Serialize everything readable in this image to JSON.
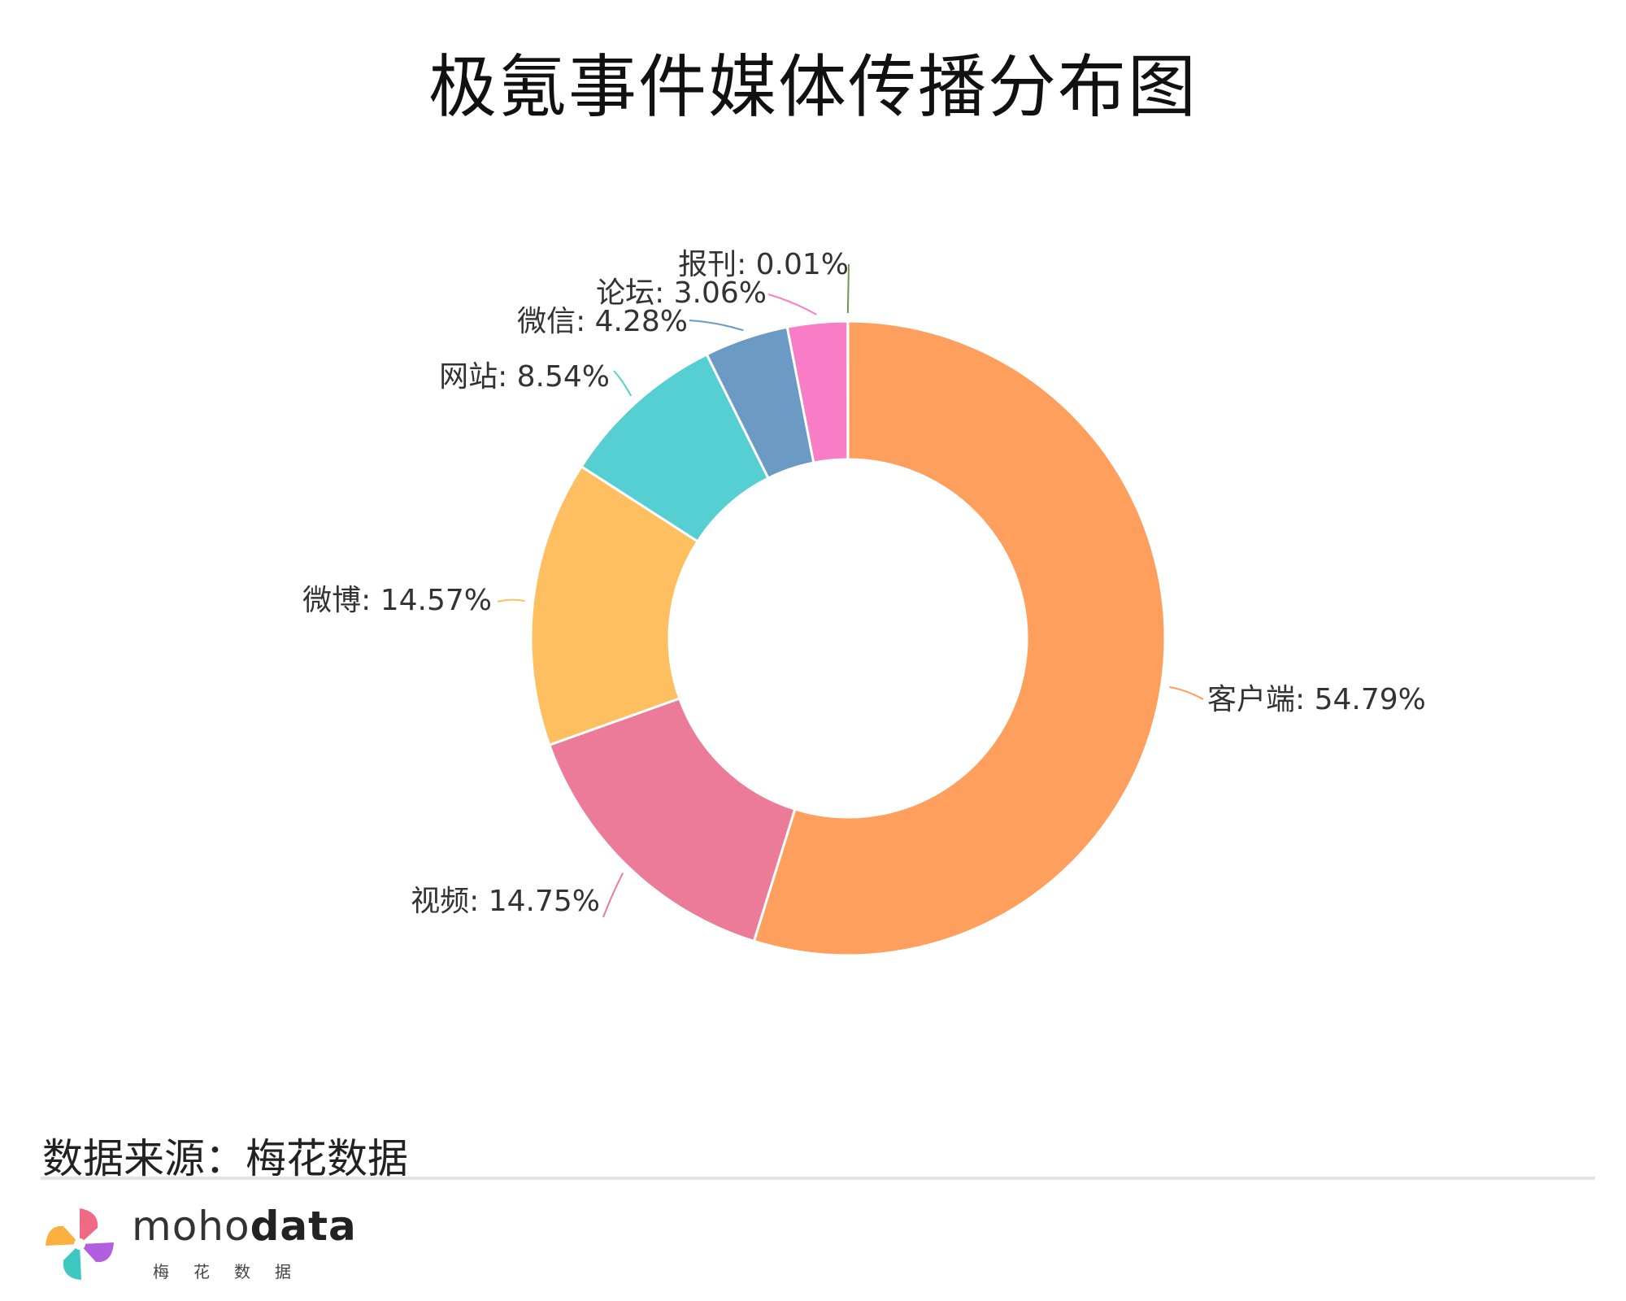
{
  "title": "极氪事件媒体传播分布图",
  "chart_data": {
    "type": "pie",
    "donut": true,
    "title": "极氪事件媒体传播分布图",
    "slices": [
      {
        "name": "客户端",
        "value": 54.79,
        "label": "客户端: 54.79%",
        "color": "#FF9F5E"
      },
      {
        "name": "视频",
        "value": 14.75,
        "label": "视频: 14.75%",
        "color": "#EB7B98"
      },
      {
        "name": "微博",
        "value": 14.57,
        "label": "微博: 14.57%",
        "color": "#FDBF60"
      },
      {
        "name": "网站",
        "value": 8.54,
        "label": "网站: 8.54%",
        "color": "#56CFD2"
      },
      {
        "name": "微信",
        "value": 4.28,
        "label": "微信: 4.28%",
        "color": "#6B9AC4"
      },
      {
        "name": "论坛",
        "value": 3.06,
        "label": "论坛: 3.06%",
        "color": "#F87DC6"
      },
      {
        "name": "报刊",
        "value": 0.01,
        "label": "报刊: 0.01%",
        "color": "#6C9B4A"
      }
    ],
    "start_angle_deg": 0,
    "direction": "clockwise"
  },
  "footer": {
    "source": "数据来源：梅花数据",
    "brand_light": "moho",
    "brand_bold": "data",
    "brand_cn": "梅花数据"
  }
}
